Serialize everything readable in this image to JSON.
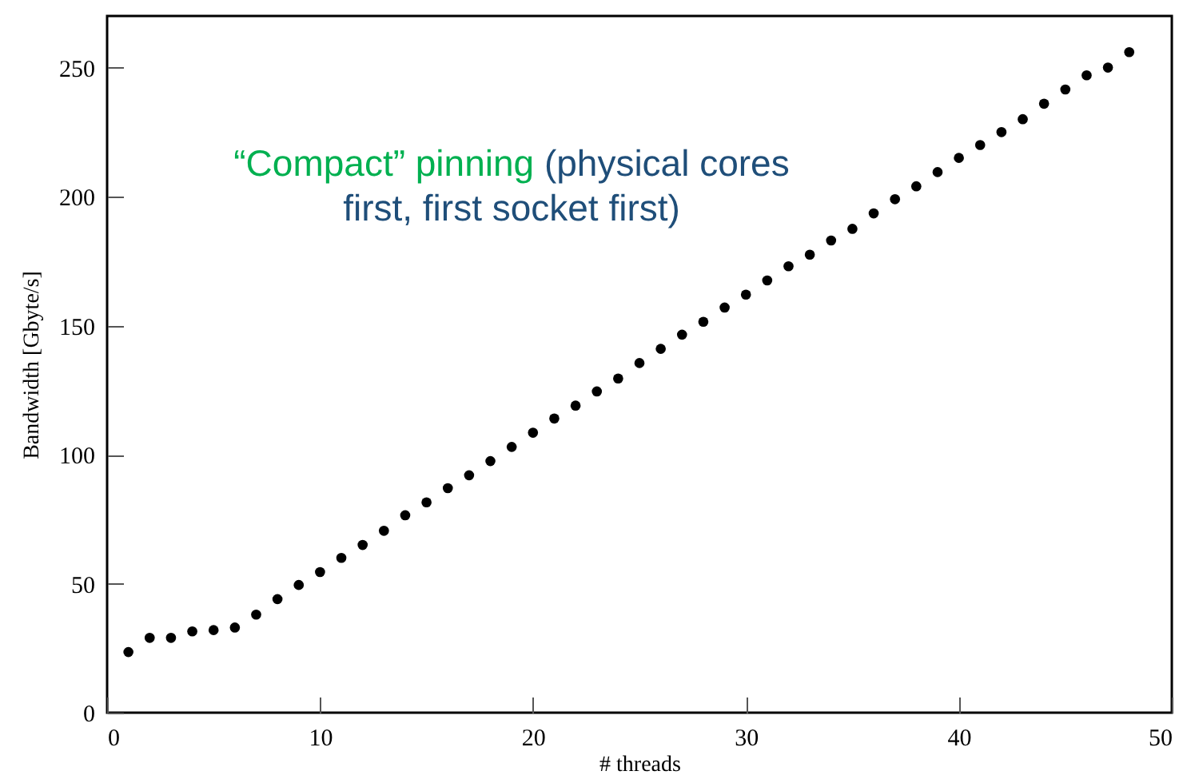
{
  "chart_data": {
    "type": "scatter",
    "xlabel": "# threads",
    "ylabel": "Bandwidth [Gbyte/s]",
    "annotations": [
      "“Compact” pinning",
      "(physical cores first, first socket first)"
    ],
    "x": [
      1,
      2,
      3,
      4,
      5,
      6,
      7,
      8,
      9,
      10,
      11,
      12,
      13,
      14,
      15,
      16,
      17,
      18,
      19,
      20,
      21,
      22,
      23,
      24,
      25,
      26,
      27,
      28,
      29,
      30,
      31,
      32,
      33,
      34,
      35,
      36,
      37,
      38,
      39,
      40,
      41,
      42,
      43,
      44,
      45,
      46,
      47,
      48
    ],
    "series": [
      {
        "color": "#000000",
        "values": [
          23.5,
          29,
          29,
          31.5,
          32,
          33,
          38,
          44,
          49.5,
          54.5,
          60,
          65,
          70.5,
          76.5,
          81.5,
          87,
          92,
          97.5,
          103,
          108.5,
          114,
          119,
          124.5,
          129.5,
          135.5,
          141,
          146.5,
          151.5,
          157,
          162,
          167.5,
          173,
          177.5,
          183,
          187.5,
          193.5,
          199,
          204,
          209.5,
          215,
          220,
          225,
          230,
          236,
          241.5,
          247,
          250,
          256
        ]
      }
    ],
    "xlim": [
      0,
      50
    ],
    "xticks": [
      0,
      10,
      20,
      30,
      40,
      50
    ],
    "ylim": [
      0,
      270
    ],
    "yticks": [
      0,
      50,
      100,
      150,
      200,
      250
    ],
    "grid": false,
    "marker": "circle"
  }
}
